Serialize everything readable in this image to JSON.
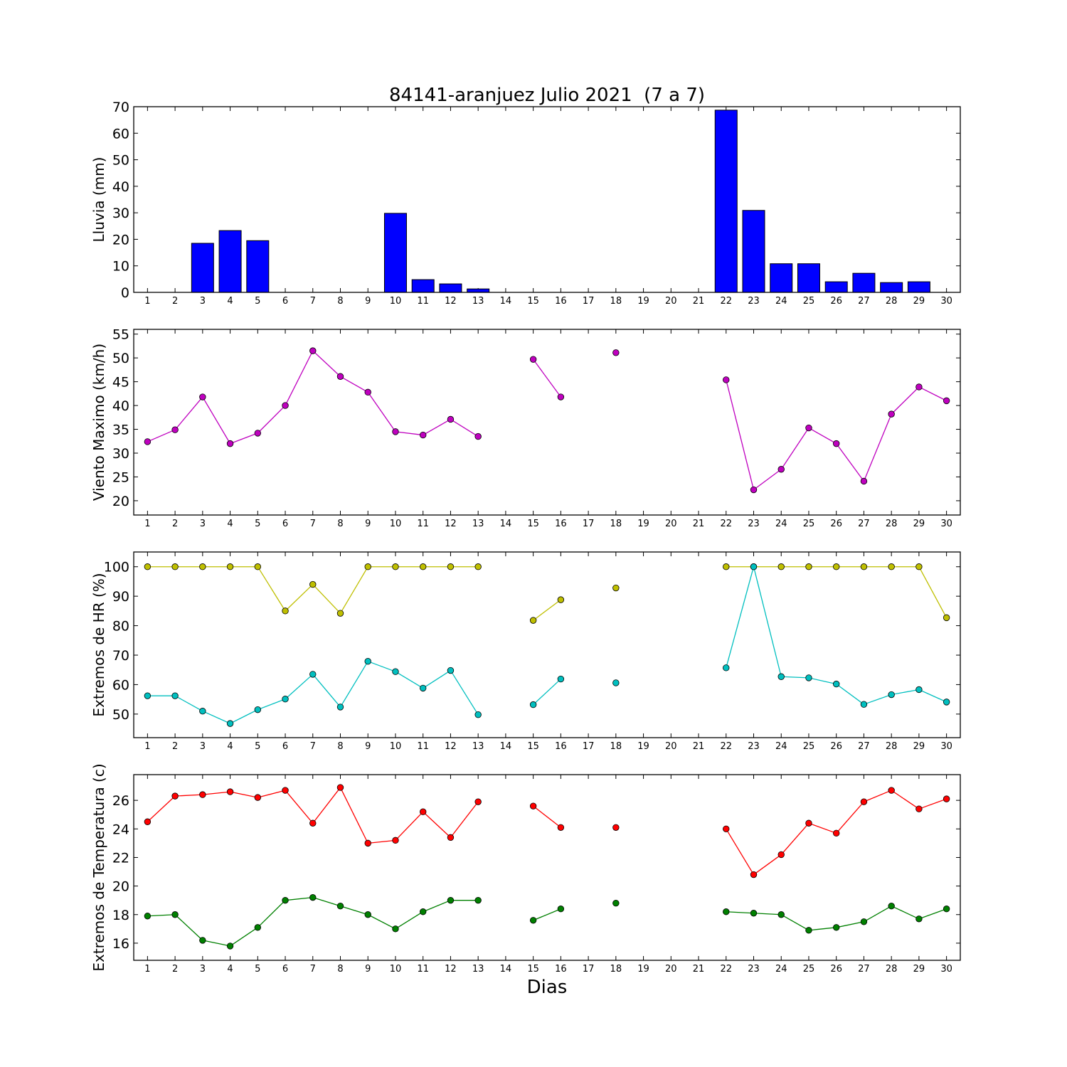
{
  "figure_title": "84141-aranjuez Julio 2021  (7 a 7)",
  "x_axis_label": "Dias",
  "chart_data": [
    {
      "type": "bar",
      "ylabel": "Lluvia (mm)",
      "ylim": [
        0,
        70
      ],
      "yticks": [
        0,
        10,
        20,
        30,
        40,
        50,
        60,
        70
      ],
      "x": [
        1,
        2,
        3,
        4,
        5,
        6,
        7,
        8,
        9,
        10,
        11,
        12,
        13,
        14,
        15,
        16,
        17,
        18,
        19,
        20,
        21,
        22,
        23,
        24,
        25,
        26,
        27,
        28,
        29,
        30
      ],
      "series": [
        {
          "color": "#0000ff",
          "values": [
            0,
            0,
            18.5,
            23.3,
            19.5,
            0,
            0,
            0,
            0,
            29.8,
            4.8,
            3.2,
            1.3,
            0,
            0,
            0,
            0,
            0,
            0,
            0,
            0,
            68.7,
            30.9,
            10.8,
            10.8,
            4,
            7.2,
            3.7,
            4,
            null
          ]
        }
      ]
    },
    {
      "type": "line",
      "ylabel": "Viento Maximo (km/h)",
      "ylim": [
        17,
        56
      ],
      "yticks": [
        20,
        25,
        30,
        35,
        40,
        45,
        50,
        55
      ],
      "x": [
        1,
        2,
        3,
        4,
        5,
        6,
        7,
        8,
        9,
        10,
        11,
        12,
        13,
        14,
        15,
        16,
        17,
        18,
        19,
        20,
        21,
        22,
        23,
        24,
        25,
        26,
        27,
        28,
        29,
        30
      ],
      "series": [
        {
          "color": "#bf00bf",
          "values": [
            32.4,
            34.9,
            41.8,
            32.0,
            34.2,
            40.0,
            51.5,
            46.1,
            42.8,
            34.5,
            33.8,
            37.1,
            33.5,
            null,
            49.7,
            41.8,
            null,
            51.1,
            null,
            null,
            null,
            45.4,
            22.3,
            26.6,
            35.3,
            32.0,
            24.1,
            38.2,
            43.9,
            41.0
          ]
        }
      ]
    },
    {
      "type": "line",
      "ylabel": "Extremos de HR (%)",
      "ylim": [
        42,
        105
      ],
      "yticks": [
        50,
        60,
        70,
        80,
        90,
        100
      ],
      "x": [
        1,
        2,
        3,
        4,
        5,
        6,
        7,
        8,
        9,
        10,
        11,
        12,
        13,
        14,
        15,
        16,
        17,
        18,
        19,
        20,
        21,
        22,
        23,
        24,
        25,
        26,
        27,
        28,
        29,
        30
      ],
      "series": [
        {
          "color": "#bfbf00",
          "values": [
            100,
            100,
            100,
            100,
            100,
            85,
            94,
            84.2,
            100,
            100,
            100,
            100,
            100,
            null,
            81.8,
            88.8,
            null,
            92.8,
            null,
            null,
            null,
            100,
            100,
            100,
            100,
            100,
            100,
            100,
            100,
            82.7
          ]
        },
        {
          "color": "#00bfbf",
          "values": [
            56.2,
            56.2,
            51,
            46.8,
            51.5,
            55.1,
            63.5,
            52.4,
            67.9,
            64.4,
            58.8,
            64.8,
            49.8,
            null,
            53.2,
            61.9,
            null,
            60.6,
            null,
            null,
            null,
            65.7,
            100,
            62.7,
            62.3,
            60.2,
            53.3,
            56.6,
            58.3,
            54.1
          ]
        }
      ]
    },
    {
      "type": "line",
      "ylabel": "Extremos de Temperatura (c)",
      "ylim": [
        14.8,
        27.8
      ],
      "yticks": [
        16,
        18,
        20,
        22,
        24,
        26
      ],
      "x": [
        1,
        2,
        3,
        4,
        5,
        6,
        7,
        8,
        9,
        10,
        11,
        12,
        13,
        14,
        15,
        16,
        17,
        18,
        19,
        20,
        21,
        22,
        23,
        24,
        25,
        26,
        27,
        28,
        29,
        30
      ],
      "series": [
        {
          "color": "#ff0000",
          "values": [
            24.5,
            26.3,
            26.4,
            26.6,
            26.2,
            26.7,
            24.4,
            26.9,
            23.0,
            23.2,
            25.2,
            23.4,
            25.9,
            null,
            25.6,
            24.1,
            null,
            24.1,
            null,
            null,
            null,
            24.0,
            20.8,
            22.2,
            24.4,
            23.7,
            25.9,
            26.7,
            25.4,
            26.1
          ]
        },
        {
          "color": "#008000",
          "values": [
            17.9,
            18.0,
            16.2,
            15.8,
            17.1,
            19.0,
            19.2,
            18.6,
            18.0,
            17.0,
            18.2,
            19.0,
            19.0,
            null,
            17.6,
            18.4,
            null,
            18.8,
            null,
            null,
            null,
            18.2,
            18.1,
            18.0,
            16.9,
            17.1,
            17.5,
            18.6,
            17.7,
            18.4
          ]
        }
      ]
    }
  ]
}
